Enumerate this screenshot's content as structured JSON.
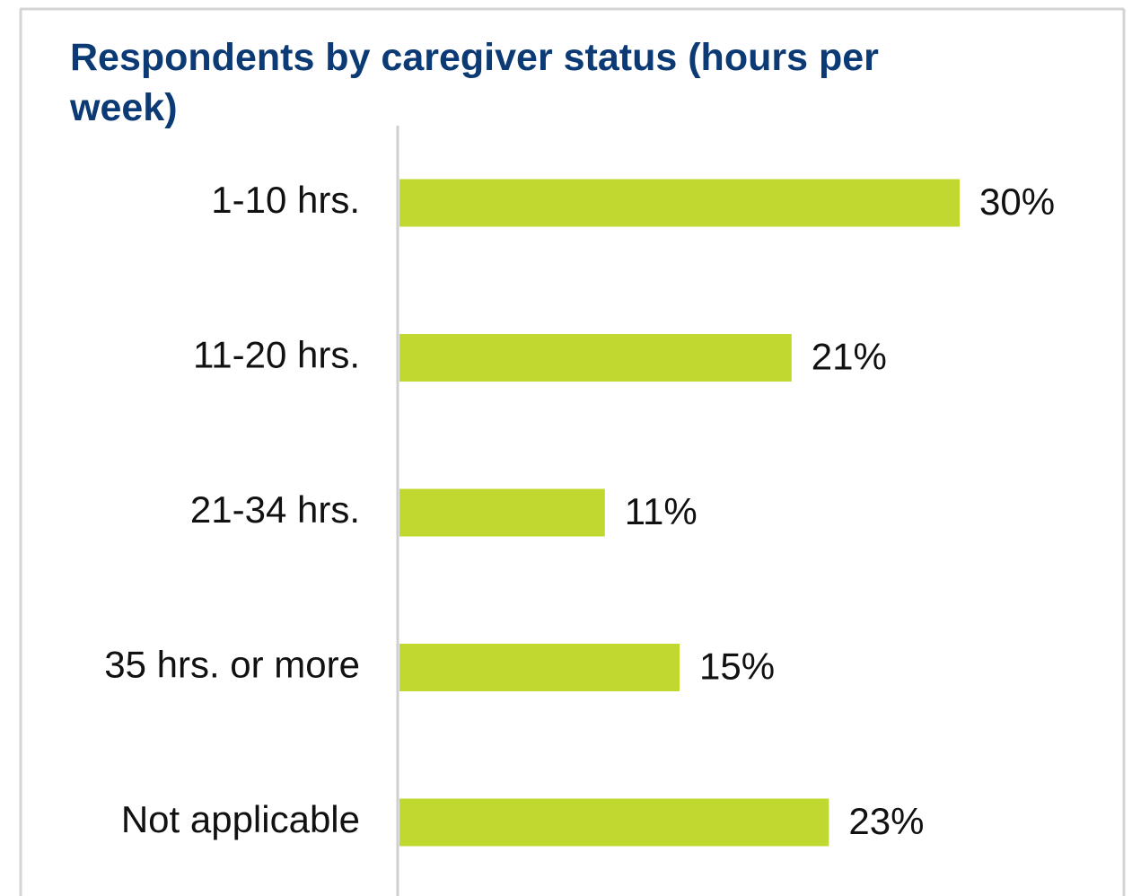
{
  "chart_data": {
    "type": "bar",
    "orientation": "horizontal",
    "title": "Respondents by caregiver status (hours per week)",
    "categories": [
      "1-10 hrs.",
      "11-20 hrs.",
      "21-34 hrs.",
      "35 hrs. or more",
      "Not applicable"
    ],
    "values": [
      30,
      21,
      11,
      15,
      23
    ],
    "value_labels": [
      "30%",
      "21%",
      "11%",
      "15%",
      "23%"
    ],
    "color": "#c0d82f"
  }
}
